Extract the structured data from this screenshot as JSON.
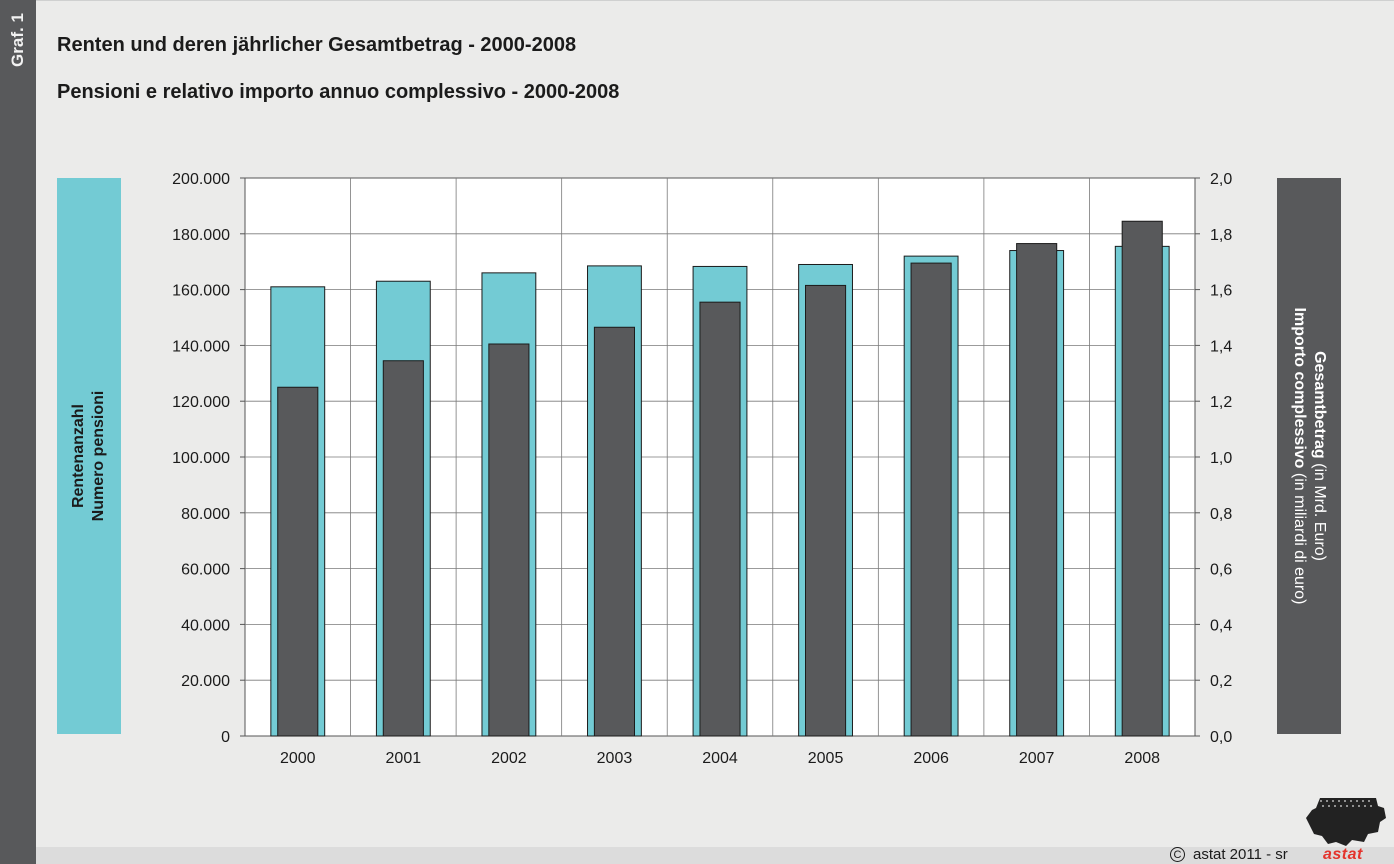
{
  "header": {
    "badge": "Graf. 1",
    "title": "Renten und deren jährlicher Gesamtbetrag - 2000-2008",
    "subtitle": "Pensioni e relativo importo annuo complessivo - 2000-2008"
  },
  "left_axis_label": {
    "line1": "Rentenanzahl",
    "line2": "Numero pensioni"
  },
  "right_axis_label": {
    "line1_bold": "Gesamtbetrag",
    "line1_rest": " (in Mrd. Euro)",
    "line2_bold": "Importo complessivo",
    "line2_rest": " (in miliardi di euro)"
  },
  "footer": {
    "copyright_symbol": "C",
    "copyright_text": "astat 2011 - sr",
    "logo_word": "astat"
  },
  "colors": {
    "count_bar": "#73cbd4",
    "amount_bar": "#58595b",
    "background": "#ebebea",
    "plot_background": "#ffffff",
    "brand_red": "#e4342d"
  },
  "chart_data": {
    "type": "bar",
    "categories": [
      "2000",
      "2001",
      "2002",
      "2003",
      "2004",
      "2005",
      "2006",
      "2007",
      "2008"
    ],
    "series": [
      {
        "axis": "left",
        "values": [
          161000,
          163000,
          166000,
          168500,
          168300,
          169000,
          172000,
          174000,
          175500
        ]
      },
      {
        "axis": "right",
        "values": [
          1.25,
          1.345,
          1.405,
          1.465,
          1.555,
          1.615,
          1.695,
          1.765,
          1.845
        ]
      }
    ],
    "y_left": {
      "lim": [
        0,
        200000
      ],
      "ticks": [
        "0",
        "20.000",
        "40.000",
        "60.000",
        "80.000",
        "100.000",
        "120.000",
        "140.000",
        "160.000",
        "180.000",
        "200.000"
      ]
    },
    "y_right": {
      "lim": [
        0,
        2.0
      ],
      "ticks": [
        "0,0",
        "0,2",
        "0,4",
        "0,6",
        "0,8",
        "1,0",
        "1,2",
        "1,4",
        "1,6",
        "1,8",
        "2,0"
      ]
    },
    "grid": true
  }
}
